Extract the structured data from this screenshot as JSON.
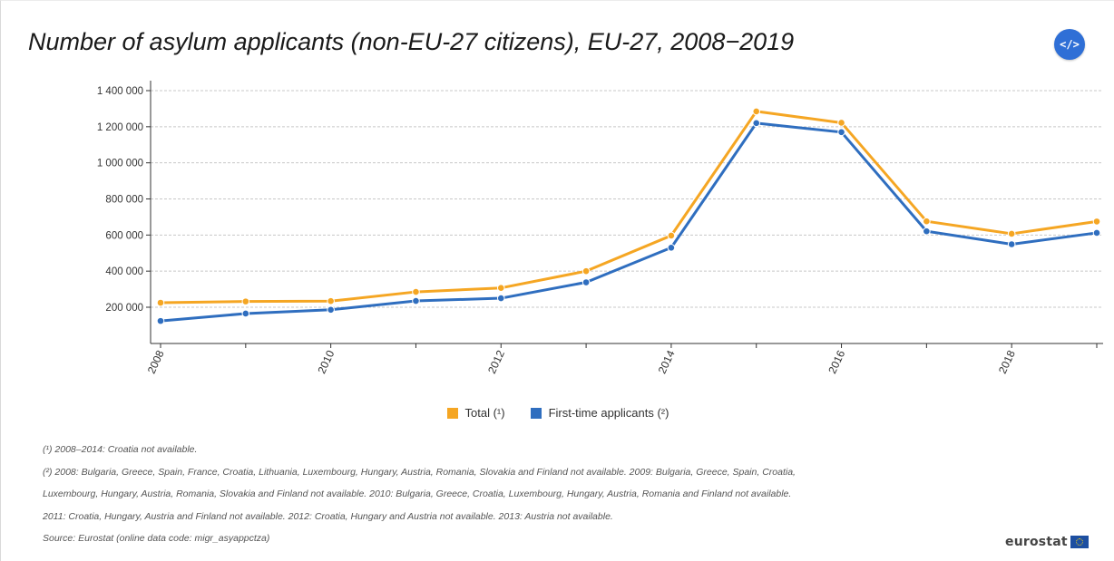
{
  "title": "Number of asylum applicants (non-EU-27 citizens), EU-27, 2008−2019",
  "embed_button": {
    "label": "</>",
    "icon": "embed-code-icon"
  },
  "chart_data": {
    "type": "line",
    "x": [
      2008,
      2009,
      2010,
      2011,
      2012,
      2013,
      2014,
      2015,
      2016,
      2017,
      2018,
      2019
    ],
    "x_tick_labels": [
      "2008",
      "2010",
      "2012",
      "2014",
      "2016",
      "2018"
    ],
    "y_tick_labels": [
      "200 000",
      "400 000",
      "600 000",
      "800 000",
      "1 000 000",
      "1 200 000",
      "1 400 000"
    ],
    "ylim": [
      0,
      1400000
    ],
    "grid": true,
    "legend_position": "bottom",
    "series": [
      {
        "name": "Total (¹)",
        "color": "#f5a623",
        "values": [
          225000,
          232000,
          234000,
          285000,
          307000,
          400000,
          597000,
          1285000,
          1222000,
          676000,
          607000,
          675000
        ]
      },
      {
        "name": "First-time applicants (²)",
        "color": "#2f6ebf",
        "values": [
          124000,
          165000,
          186000,
          235000,
          250000,
          338000,
          530000,
          1220000,
          1170000,
          621000,
          549000,
          612000
        ]
      }
    ]
  },
  "notes": [
    "(¹) 2008–2014: Croatia not available.",
    "(²) 2008: Bulgaria, Greece, Spain, France, Croatia, Lithuania, Luxembourg, Hungary, Austria, Romania, Slovakia and Finland not available. 2009: Bulgaria, Greece, Spain, Croatia,",
    "Luxembourg, Hungary, Austria, Romania, Slovakia and Finland not available. 2010: Bulgaria, Greece, Croatia, Luxembourg, Hungary, Austria, Romania and Finland not available.",
    "2011: Croatia, Hungary, Austria and Finland not available. 2012: Croatia, Hungary and Austria not available. 2013: Austria not available.",
    "Source: Eurostat (online data code: migr_asyappctza)"
  ],
  "brand": {
    "name": "eurostat",
    "flag_icon": "eu-flag-icon"
  }
}
